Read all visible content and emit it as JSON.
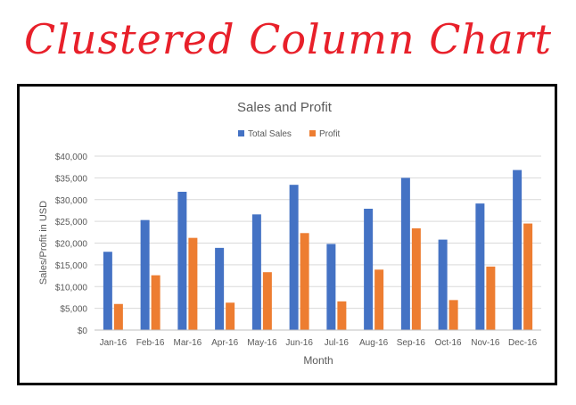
{
  "banner": {
    "title": "Clustered Column Chart"
  },
  "colors": {
    "banner": "#e8202a",
    "total_sales": "#4472c4",
    "profit": "#ed7d31",
    "gridline": "#d9d9d9",
    "axis": "#bfbfbf",
    "text": "#595959"
  },
  "chart_data": {
    "type": "bar",
    "title": "Sales and Profit",
    "xlabel": "Month",
    "ylabel": "Sales/Profit in USD",
    "ylim": [
      0,
      40000
    ],
    "yticks": [
      0,
      5000,
      10000,
      15000,
      20000,
      25000,
      30000,
      35000,
      40000
    ],
    "ytick_labels": [
      "$0",
      "$5,000",
      "$10,000",
      "$15,000",
      "$20,000",
      "$25,000",
      "$30,000",
      "$35,000",
      "$40,000"
    ],
    "grid": true,
    "legend": "top",
    "categories": [
      "Jan-16",
      "Feb-16",
      "Mar-16",
      "Apr-16",
      "May-16",
      "Jun-16",
      "Jul-16",
      "Aug-16",
      "Sep-16",
      "Oct-16",
      "Nov-16",
      "Dec-16"
    ],
    "series": [
      {
        "name": "Total Sales",
        "color": "#4472c4",
        "values": [
          18000,
          25300,
          31800,
          18900,
          26600,
          33400,
          19800,
          27900,
          35000,
          20800,
          29100,
          36800
        ]
      },
      {
        "name": "Profit",
        "color": "#ed7d31",
        "values": [
          6000,
          12600,
          21200,
          6300,
          13300,
          22300,
          6600,
          13900,
          23400,
          6900,
          14600,
          24500
        ]
      }
    ]
  }
}
